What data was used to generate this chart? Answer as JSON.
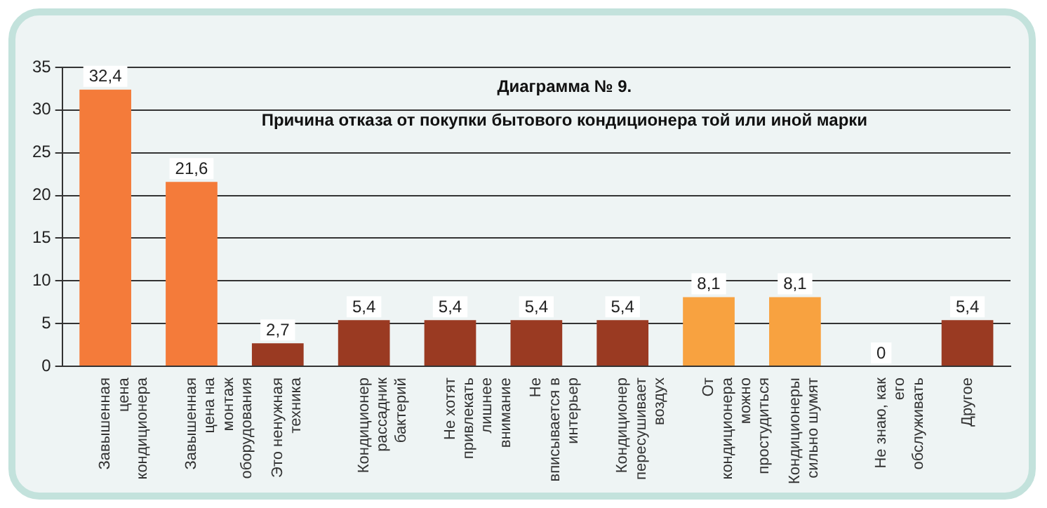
{
  "chart_data": {
    "type": "bar",
    "title": "Диаграмма № 9.",
    "subtitle": "Причина отказа от покупки бытового кондиционера той или иной марки",
    "categories": [
      "Завышенная\nцена\nкондиционера",
      "Завышенная\nцена на\nмонтаж\nоборудования",
      "Это ненужная\nтехника",
      "Кондиционер\nрассадник\nбактерий",
      "Не хотят\nпривлекать\nлишнее\nвнимание",
      "Не\nвписывается в\nинтерьер",
      "Кондиционер\nпересушивает\nвоздух",
      "От\nкондиционера\nможно\nпростудиться",
      "Кондиционеры\nсильно шумят",
      "Не знаю, как\nего\nобслуживать",
      "Другое"
    ],
    "values": [
      32.4,
      21.6,
      2.7,
      5.4,
      5.4,
      5.4,
      5.4,
      8.1,
      8.1,
      0,
      5.4
    ],
    "colors": [
      "#f47b3a",
      "#f47b3a",
      "#9a3a22",
      "#9a3a22",
      "#9a3a22",
      "#9a3a22",
      "#9a3a22",
      "#f8a240",
      "#f8a240",
      "#9a3a22",
      "#9a3a22"
    ],
    "value_labels": [
      "32,4",
      "21,6",
      "2,7",
      "5,4",
      "5,4",
      "5,4",
      "5,4",
      "8,1",
      "8,1",
      "0",
      "5,4"
    ],
    "ylim": [
      0,
      35
    ],
    "yticks": [
      0,
      5,
      10,
      15,
      20,
      25,
      30,
      35
    ],
    "grid": "y",
    "legend": false
  }
}
